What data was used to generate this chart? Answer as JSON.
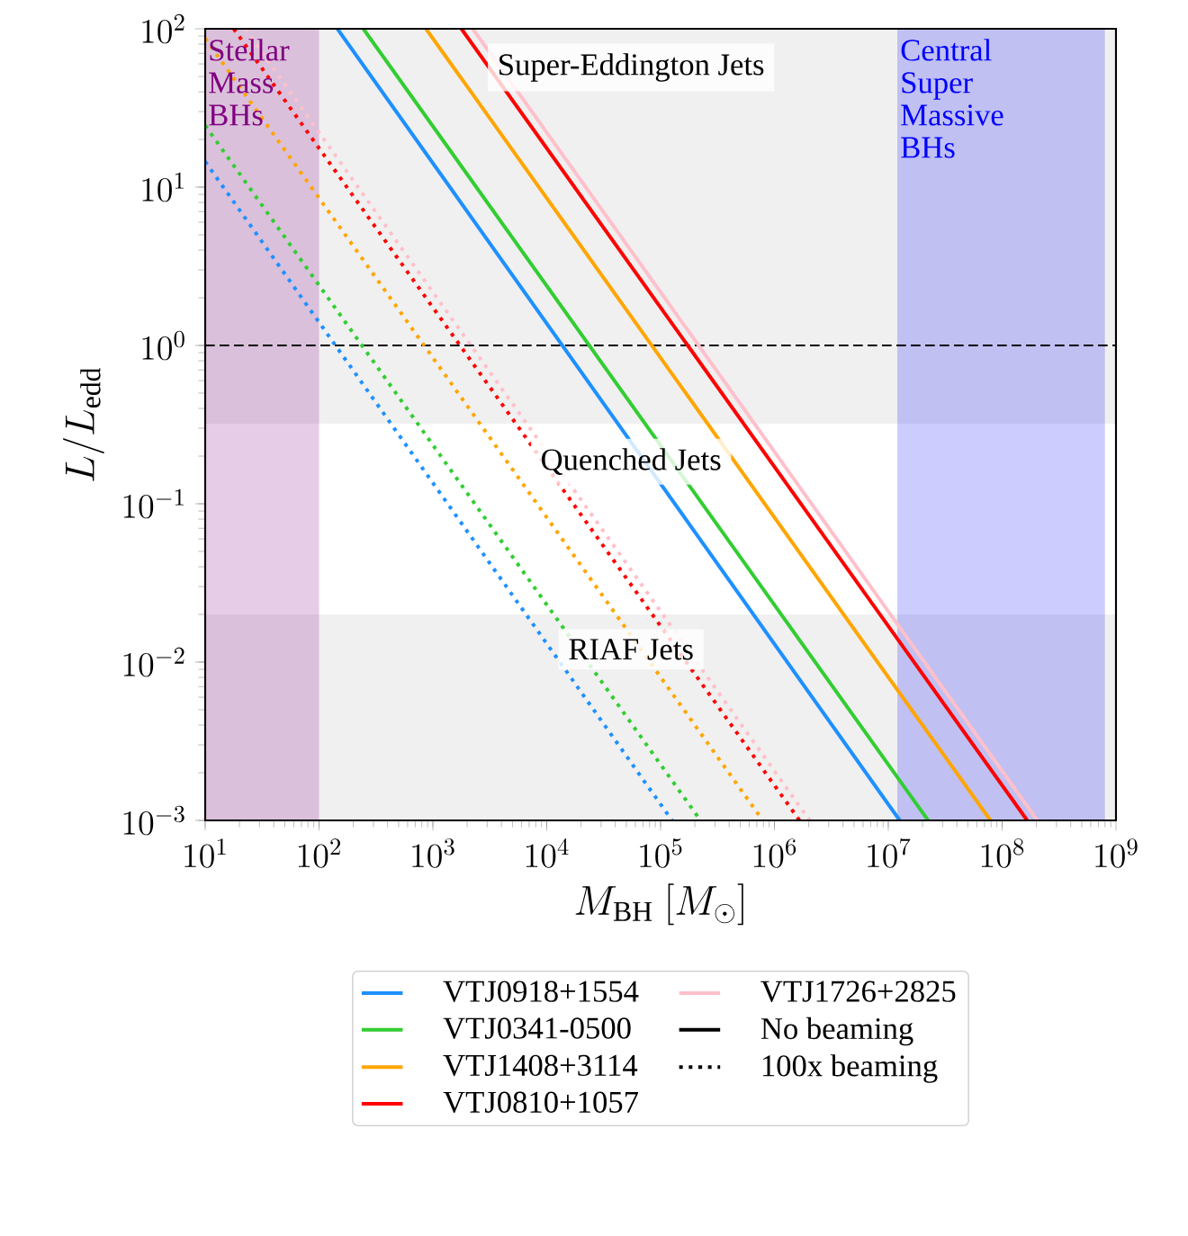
{
  "chart_data": {
    "type": "line",
    "xlabel": "M_{\\mathrm{BH}}\\ [M_\\odot]",
    "ylabel": "L/L_{\\mathrm{edd}}",
    "log": "xy",
    "grid": false,
    "legend": "bottom",
    "xlim": [
      10,
      1000000000
    ],
    "ylim": [
      0.001,
      100
    ],
    "xticks": [
      {
        "value": 10,
        "label": "10^{1}"
      },
      {
        "value": 100,
        "label": "10^{2}"
      },
      {
        "value": 1000,
        "label": "10^{3}"
      },
      {
        "value": 10000,
        "label": "10^{4}"
      },
      {
        "value": 100000,
        "label": "10^{5}"
      },
      {
        "value": 1000000,
        "label": "10^{6}"
      },
      {
        "value": 10000000,
        "label": "10^{7}"
      },
      {
        "value": 100000000,
        "label": "10^{8}"
      },
      {
        "value": 1000000000,
        "label": "10^{9}"
      }
    ],
    "yticks": [
      {
        "value": 0.001,
        "label": "10^{-3}"
      },
      {
        "value": 0.01,
        "label": "10^{-2}"
      },
      {
        "value": 0.1,
        "label": "10^{-1}"
      },
      {
        "value": 1,
        "label": "10^{0}"
      },
      {
        "value": 10,
        "label": "10^{1}"
      },
      {
        "value": 100,
        "label": "10^{2}"
      }
    ],
    "series": [
      {
        "name": "VTJ0918+1554",
        "color": "#1e90ff",
        "line_style": "solid",
        "x": [
          145,
          12600000
        ],
        "values": [
          100,
          0.001
        ]
      },
      {
        "name": "VTJ0341-0500",
        "color": "#32cd32",
        "line_style": "solid",
        "x": [
          245,
          22400000
        ],
        "values": [
          100,
          0.001
        ]
      },
      {
        "name": "VTJ1408+3114",
        "color": "#ffa500",
        "line_style": "solid",
        "x": [
          870,
          79000000
        ],
        "values": [
          100,
          0.001
        ]
      },
      {
        "name": "VTJ0810+1057",
        "color": "#ff0000",
        "line_style": "solid",
        "x": [
          1780,
          166000000
        ],
        "values": [
          100,
          0.001
        ]
      },
      {
        "name": "VTJ1726+2825",
        "color": "#ffc0cb",
        "line_style": "solid",
        "x": [
          2240,
          204000000
        ],
        "values": [
          100,
          0.001
        ]
      },
      {
        "color": "#1e90ff",
        "line_style": "dotted",
        "x": [
          10,
          126000
        ],
        "values": [
          14.5,
          0.001
        ]
      },
      {
        "color": "#32cd32",
        "line_style": "dotted",
        "x": [
          10,
          224000
        ],
        "values": [
          24.5,
          0.001
        ]
      },
      {
        "color": "#ffa500",
        "line_style": "dotted",
        "x": [
          10,
          790000
        ],
        "values": [
          87,
          0.001
        ]
      },
      {
        "color": "#ff0000",
        "line_style": "dotted",
        "x": [
          17.8,
          1660000
        ],
        "values": [
          100,
          0.001
        ]
      },
      {
        "color": "#ffc0cb",
        "line_style": "dotted",
        "x": [
          22.4,
          2040000
        ],
        "values": [
          100,
          0.001
        ]
      },
      {
        "name": "No beaming",
        "color": "#000000",
        "line_style": "solid",
        "x": [
          null,
          null
        ],
        "values": [
          null,
          null
        ]
      },
      {
        "name": "100x beaming",
        "color": "#000000",
        "line_style": "dotted",
        "x": [
          null,
          null
        ],
        "values": [
          null,
          null
        ]
      }
    ],
    "annotations": [
      "Quenched Jets"
    ],
    "ref_lines": [
      {
        "axis": "y",
        "value": 1,
        "color": "#000000",
        "line_style": "dashed"
      }
    ],
    "bands": [
      {
        "axis": "y",
        "from": 0.32,
        "to": 100,
        "label": "Super-Eddington Jets",
        "color": "#f0f0f0"
      },
      {
        "axis": "y",
        "from": 0.001,
        "to": 0.02,
        "label": "RIAF Jets",
        "color": "#f0f0f0"
      },
      {
        "axis": "x",
        "from": 10,
        "to": 100,
        "label": "Stellar Mass BHs",
        "color": "#800080"
      },
      {
        "axis": "x",
        "from": 12000000,
        "to": 800000000,
        "label": "Central Super Massive BHs",
        "color": "#0000ff"
      }
    ]
  }
}
